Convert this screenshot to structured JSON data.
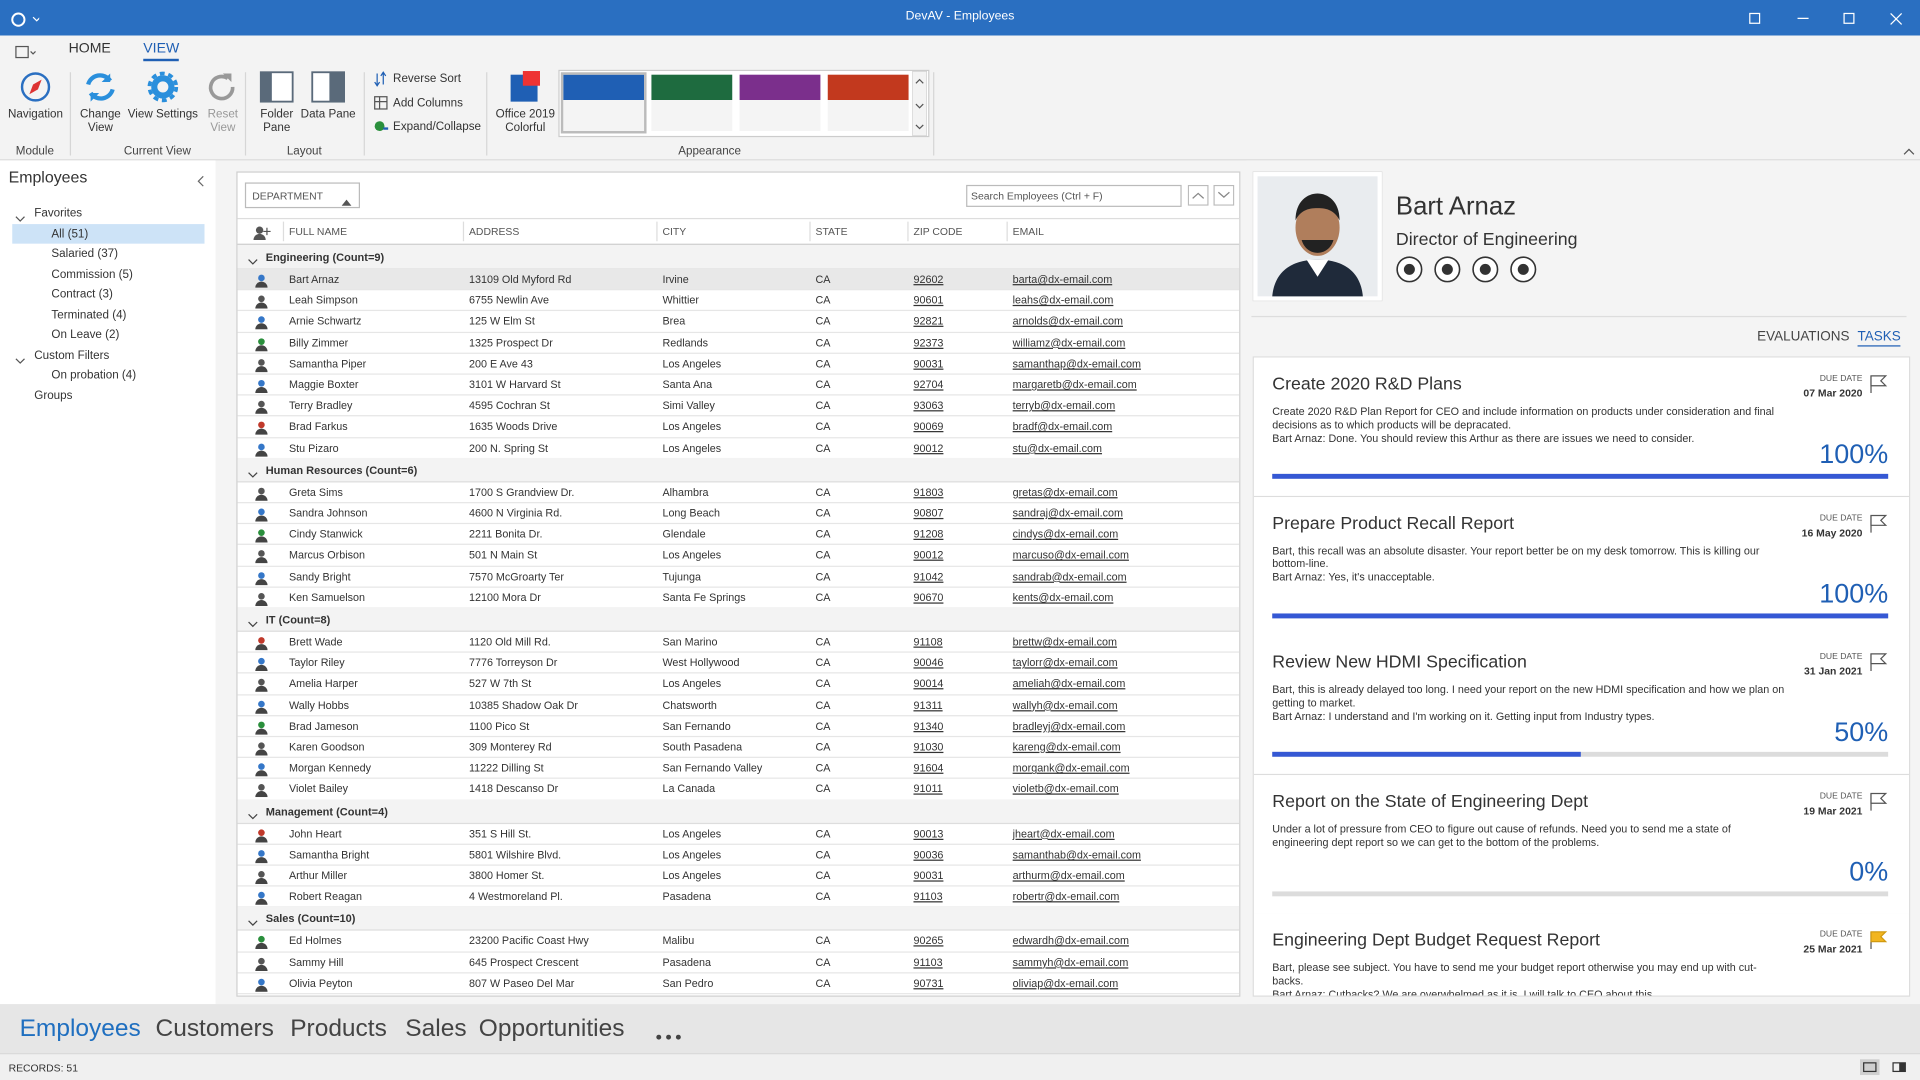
{
  "window": {
    "title": "DevAV - Employees"
  },
  "ribbon": {
    "tabs": [
      "HOME",
      "VIEW"
    ],
    "active_tab": 1,
    "groups": [
      {
        "label": "Module",
        "buttons": [
          "Navigation"
        ]
      },
      {
        "label": "Current View",
        "buttons": [
          "Change View",
          "View Settings",
          "Reset View"
        ]
      },
      {
        "label": "Layout",
        "buttons": [
          "Folder Pane",
          "Data Pane"
        ]
      },
      {
        "label": "Appearance",
        "buttons": [
          "Office 2019 Colorful"
        ]
      }
    ],
    "commands": [
      "Reverse Sort",
      "Add Columns",
      "Expand/Collapse"
    ],
    "swatches": [
      "#1f5fb4",
      "#1e6b3f",
      "#7b2f8c",
      "#c2391e"
    ]
  },
  "folder_pane": {
    "title": "Employees",
    "sections": [
      {
        "label": "Favorites",
        "items": [
          "All (51)",
          "Salaried (37)",
          "Commission (5)",
          "Contract (3)",
          "Terminated (4)",
          "On Leave (2)"
        ]
      },
      {
        "label": "Custom Filters",
        "items": [
          "On probation  (4)"
        ]
      },
      {
        "label": "Groups",
        "items": []
      }
    ]
  },
  "grid": {
    "group_by": "DEPARTMENT",
    "search_placeholder": "Search Employees (Ctrl + F)",
    "columns": [
      "FULL NAME",
      "ADDRESS",
      "CITY",
      "STATE",
      "ZIP CODE",
      "EMAIL"
    ],
    "groups": [
      {
        "label": "Engineering (Count=9)",
        "rows": [
          [
            "Bart Arnaz",
            "13109 Old Myford Rd",
            "Irvine",
            "CA",
            "92602",
            "barta@dx-email.com"
          ],
          [
            "Leah Simpson",
            "6755 Newlin Ave",
            "Whittier",
            "CA",
            "90601",
            "leahs@dx-email.com"
          ],
          [
            "Arnie Schwartz",
            "125 W Elm St",
            "Brea",
            "CA",
            "92821",
            "arnolds@dx-email.com"
          ],
          [
            "Billy Zimmer",
            "1325 Prospect Dr",
            "Redlands",
            "CA",
            "92373",
            "williamz@dx-email.com"
          ],
          [
            "Samantha Piper",
            "200 E Ave 43",
            "Los Angeles",
            "CA",
            "90031",
            "samanthap@dx-email.com"
          ],
          [
            "Maggie Boxter",
            "3101 W Harvard St",
            "Santa Ana",
            "CA",
            "92704",
            "margaretb@dx-email.com"
          ],
          [
            "Terry Bradley",
            "4595 Cochran St",
            "Simi Valley",
            "CA",
            "93063",
            "terryb@dx-email.com"
          ],
          [
            "Brad Farkus",
            "1635 Woods Drive",
            "Los Angeles",
            "CA",
            "90069",
            "bradf@dx-email.com"
          ],
          [
            "Stu Pizaro",
            "200 N. Spring St",
            "Los Angeles",
            "CA",
            "90012",
            "stu@dx-email.com"
          ]
        ]
      },
      {
        "label": "Human Resources (Count=6)",
        "rows": [
          [
            "Greta Sims",
            "1700 S Grandview Dr.",
            "Alhambra",
            "CA",
            "91803",
            "gretas@dx-email.com"
          ],
          [
            "Sandra Johnson",
            "4600 N Virginia Rd.",
            "Long Beach",
            "CA",
            "90807",
            "sandraj@dx-email.com"
          ],
          [
            "Cindy Stanwick",
            "2211 Bonita Dr.",
            "Glendale",
            "CA",
            "91208",
            "cindys@dx-email.com"
          ],
          [
            "Marcus Orbison",
            "501 N Main St",
            "Los Angeles",
            "CA",
            "90012",
            "marcuso@dx-email.com"
          ],
          [
            "Sandy Bright",
            "7570 McGroarty Ter",
            "Tujunga",
            "CA",
            "91042",
            "sandrab@dx-email.com"
          ],
          [
            "Ken Samuelson",
            "12100 Mora Dr",
            "Santa Fe Springs",
            "CA",
            "90670",
            "kents@dx-email.com"
          ]
        ]
      },
      {
        "label": "IT (Count=8)",
        "rows": [
          [
            "Brett Wade",
            "1120 Old Mill Rd.",
            "San Marino",
            "CA",
            "91108",
            "brettw@dx-email.com"
          ],
          [
            "Taylor Riley",
            "7776 Torreyson Dr",
            "West Hollywood",
            "CA",
            "90046",
            "taylorr@dx-email.com"
          ],
          [
            "Amelia Harper",
            "527 W 7th St",
            "Los Angeles",
            "CA",
            "90014",
            "ameliah@dx-email.com"
          ],
          [
            "Wally Hobbs",
            "10385 Shadow Oak Dr",
            "Chatsworth",
            "CA",
            "91311",
            "wallyh@dx-email.com"
          ],
          [
            "Brad Jameson",
            "1100 Pico St",
            "San Fernando",
            "CA",
            "91340",
            "bradleyj@dx-email.com"
          ],
          [
            "Karen Goodson",
            "309 Monterey Rd",
            "South Pasadena",
            "CA",
            "91030",
            "kareng@dx-email.com"
          ],
          [
            "Morgan Kennedy",
            "11222 Dilling St",
            "San Fernando Valley",
            "CA",
            "91604",
            "morgank@dx-email.com"
          ],
          [
            "Violet Bailey",
            "1418 Descanso Dr",
            "La Canada",
            "CA",
            "91011",
            "violetb@dx-email.com"
          ]
        ]
      },
      {
        "label": "Management (Count=4)",
        "rows": [
          [
            "John Heart",
            "351 S Hill St.",
            "Los Angeles",
            "CA",
            "90013",
            "jheart@dx-email.com"
          ],
          [
            "Samantha Bright",
            "5801 Wilshire Blvd.",
            "Los Angeles",
            "CA",
            "90036",
            "samanthab@dx-email.com"
          ],
          [
            "Arthur Miller",
            "3800 Homer St.",
            "Los Angeles",
            "CA",
            "90031",
            "arthurm@dx-email.com"
          ],
          [
            "Robert Reagan",
            "4 Westmoreland Pl.",
            "Pasadena",
            "CA",
            "91103",
            "robertr@dx-email.com"
          ]
        ]
      },
      {
        "label": "Sales (Count=10)",
        "rows": [
          [
            "Ed Holmes",
            "23200 Pacific Coast Hwy",
            "Malibu",
            "CA",
            "90265",
            "edwardh@dx-email.com"
          ],
          [
            "Sammy Hill",
            "645 Prospect Crescent",
            "Pasadena",
            "CA",
            "91103",
            "sammyh@dx-email.com"
          ],
          [
            "Olivia Peyton",
            "807 W Paseo Del Mar",
            "San Pedro",
            "CA",
            "90731",
            "oliviap@dx-email.com"
          ]
        ]
      }
    ]
  },
  "detail": {
    "name": "Bart Arnaz",
    "title": "Director of Engineering",
    "tabs": [
      "EVALUATIONS",
      "TASKS"
    ],
    "active_tab": 1,
    "tasks": [
      {
        "title": "Create 2020 R&D Plans",
        "due_label": "DUE DATE",
        "due": "07 Mar 2020",
        "text": "Create 2020 R&D Plan Report for CEO and include information on products under consideration and final decisions as to which products will be depracated.\nBart Arnaz: Done. You should review this Arthur as there are issues we need to consider.",
        "progress": 100,
        "progress_label": "100%"
      },
      {
        "title": "Prepare Product Recall Report",
        "due_label": "DUE DATE",
        "due": "16 May 2020",
        "text": "Bart, this recall was an absolute disaster. Your report better be on my desk tomorrow. This is killing our bottom-line.\nBart Arnaz: Yes, it's unacceptable.",
        "progress": 100,
        "progress_label": "100%"
      },
      {
        "title": "Review New HDMI Specification",
        "due_label": "DUE DATE",
        "due": "31 Jan 2021",
        "text": "Bart, this is already delayed too long. I need your report on the new HDMI specification and how we plan on getting to market.\nBart Arnaz: I understand and I'm working on it. Getting input from Industry types.",
        "progress": 50,
        "progress_label": "50%"
      },
      {
        "title": "Report on the State of Engineering Dept",
        "due_label": "DUE DATE",
        "due": "19 Mar 2021",
        "text": "Under a lot of pressure from CEO to figure out cause of refunds. Need you to send me a state of engineering dept report so we can get to the bottom of the problems.",
        "progress": 0,
        "progress_label": "0%"
      },
      {
        "title": "Engineering Dept Budget Request Report",
        "due_label": "DUE DATE",
        "due": "25 Mar 2021",
        "text": "Bart, please see subject. You have to send me your budget report otherwise you may end up with cut-backs.\nBart Arnaz: Cutbacks? We are overwhelmed as it is. I will talk to CEO about this."
      }
    ]
  },
  "navigation": {
    "items": [
      "Employees",
      "Customers",
      "Products",
      "Sales",
      "Opportunities"
    ],
    "active": 0
  },
  "status_bar": {
    "records": "RECORDS: 51"
  }
}
